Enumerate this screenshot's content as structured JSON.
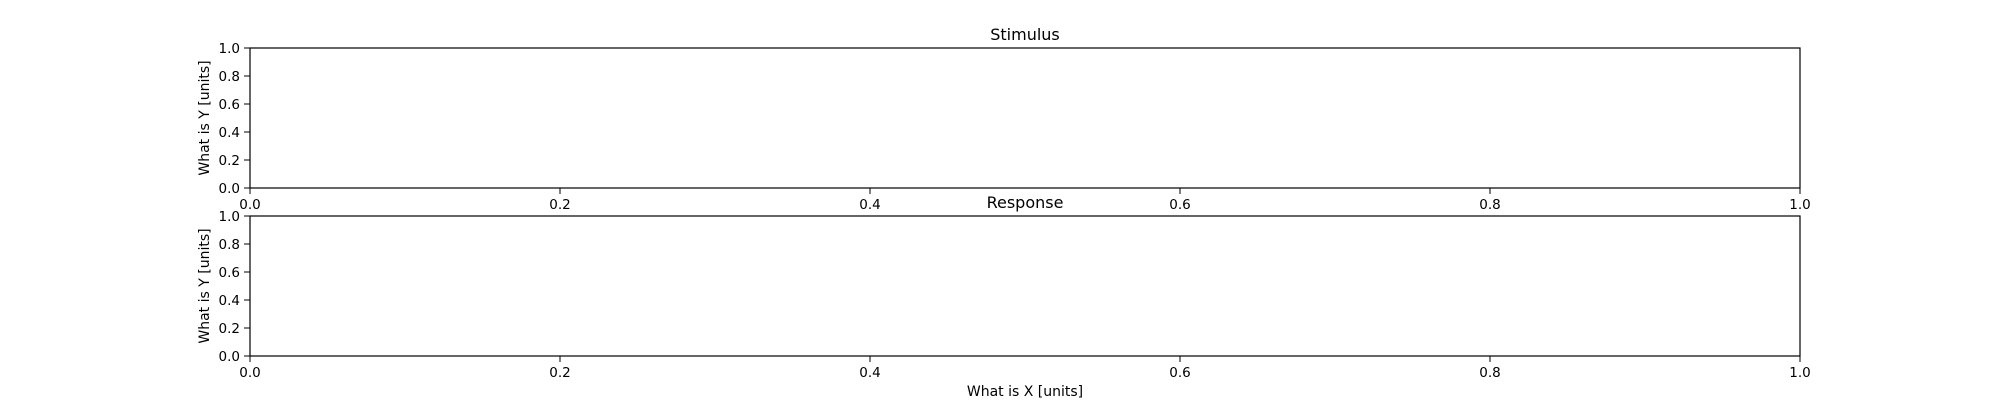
{
  "chart_data": [
    {
      "type": "line",
      "title": "Stimulus",
      "xlabel": "",
      "ylabel": "What is Y [units]",
      "xlim": [
        0.0,
        1.0
      ],
      "ylim": [
        0.0,
        1.0
      ],
      "xticks": [
        "0.0",
        "0.2",
        "0.4",
        "0.6",
        "0.8",
        "1.0"
      ],
      "yticks": [
        "0.0",
        "0.2",
        "0.4",
        "0.6",
        "0.8",
        "1.0"
      ],
      "grid": false,
      "series": []
    },
    {
      "type": "line",
      "title": "Response",
      "xlabel": "What is X [units]",
      "ylabel": "What is Y [units]",
      "xlim": [
        0.0,
        1.0
      ],
      "ylim": [
        0.0,
        1.0
      ],
      "xticks": [
        "0.0",
        "0.2",
        "0.4",
        "0.6",
        "0.8",
        "1.0"
      ],
      "yticks": [
        "0.0",
        "0.2",
        "0.4",
        "0.6",
        "0.8",
        "1.0"
      ],
      "grid": false,
      "series": []
    }
  ]
}
